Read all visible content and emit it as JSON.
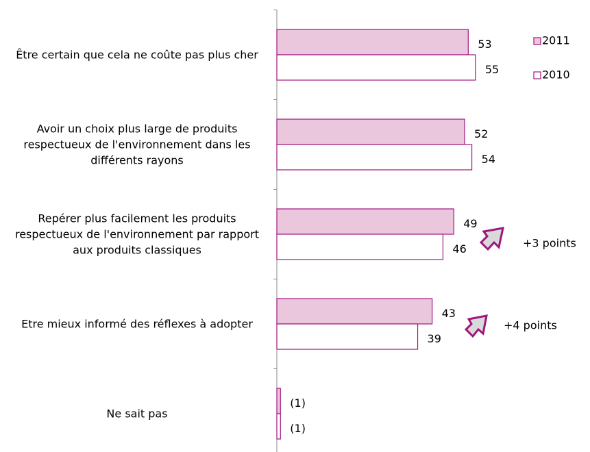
{
  "chart_data": {
    "type": "bar",
    "orientation": "horizontal",
    "categories": [
      "Être certain que cela ne coûte pas plus cher",
      "Avoir un choix plus large de produits respectueux de l'environnement dans les différents rayons",
      "Repérer plus facilement les produits respectueux de l'environnement par rapport aux produits classiques",
      "Etre mieux informé des réflexes à adopter",
      "Ne sait pas"
    ],
    "series": [
      {
        "name": "2011",
        "color": "#ebc7dd",
        "values": [
          53,
          52,
          49,
          43,
          1
        ],
        "value_labels": [
          "53",
          "52",
          "49",
          "43",
          "(1)"
        ]
      },
      {
        "name": "2010",
        "color": "#ffffff",
        "values": [
          55,
          54,
          46,
          39,
          1
        ],
        "value_labels": [
          "55",
          "54",
          "46",
          "39",
          "(1)"
        ]
      }
    ],
    "xlim": [
      0,
      80
    ],
    "annotations": [
      "+3 points",
      "+4 points"
    ],
    "legend": "top-right"
  }
}
